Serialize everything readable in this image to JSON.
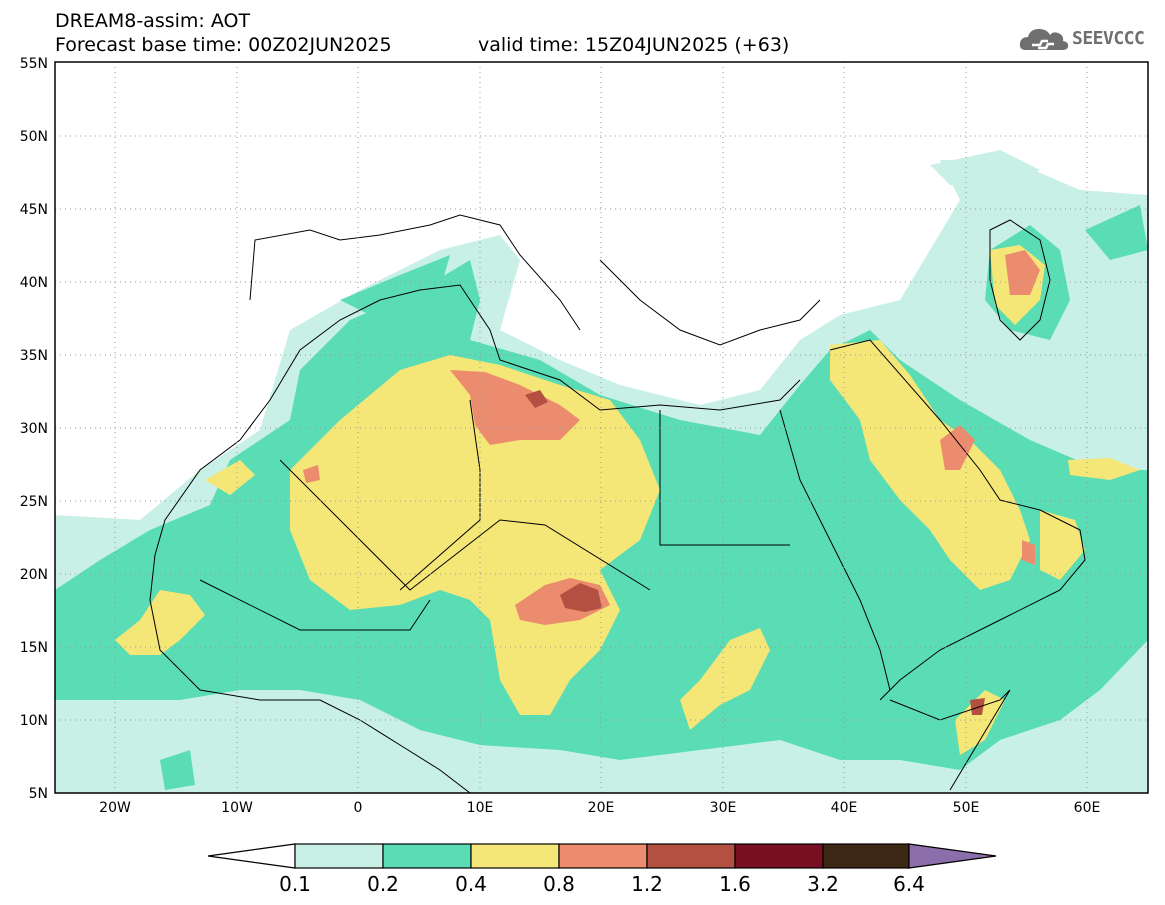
{
  "header": {
    "line1": "DREAM8-assim: AOT",
    "line2": "Forecast base time: 00Z02JUN2025",
    "valid": "valid time: 15Z04JUN2025 (+63)"
  },
  "logo": {
    "text": "SEEVCCC",
    "icon": "cloud-icon"
  },
  "map": {
    "lon_range": [
      -25,
      65
    ],
    "lat_range": [
      5,
      55
    ],
    "lat_ticks": [
      "5N",
      "10N",
      "15N",
      "20N",
      "25N",
      "30N",
      "35N",
      "40N",
      "45N",
      "50N",
      "55N"
    ],
    "lon_ticks": [
      "20W",
      "10W",
      "0",
      "10E",
      "20E",
      "30E",
      "40E",
      "50E",
      "60E"
    ],
    "gridlines": "dotted"
  },
  "colorbar": {
    "levels": [
      "0.1",
      "0.2",
      "0.4",
      "0.8",
      "1.2",
      "1.6",
      "3.2",
      "6.4"
    ],
    "colors": [
      "#c8f0e6",
      "#5adcb4",
      "#f5e678",
      "#eb8c6e",
      "#b45041",
      "#780f23",
      "#3c2814",
      "#8c6eaa"
    ],
    "under_color": "#ffffff"
  }
}
